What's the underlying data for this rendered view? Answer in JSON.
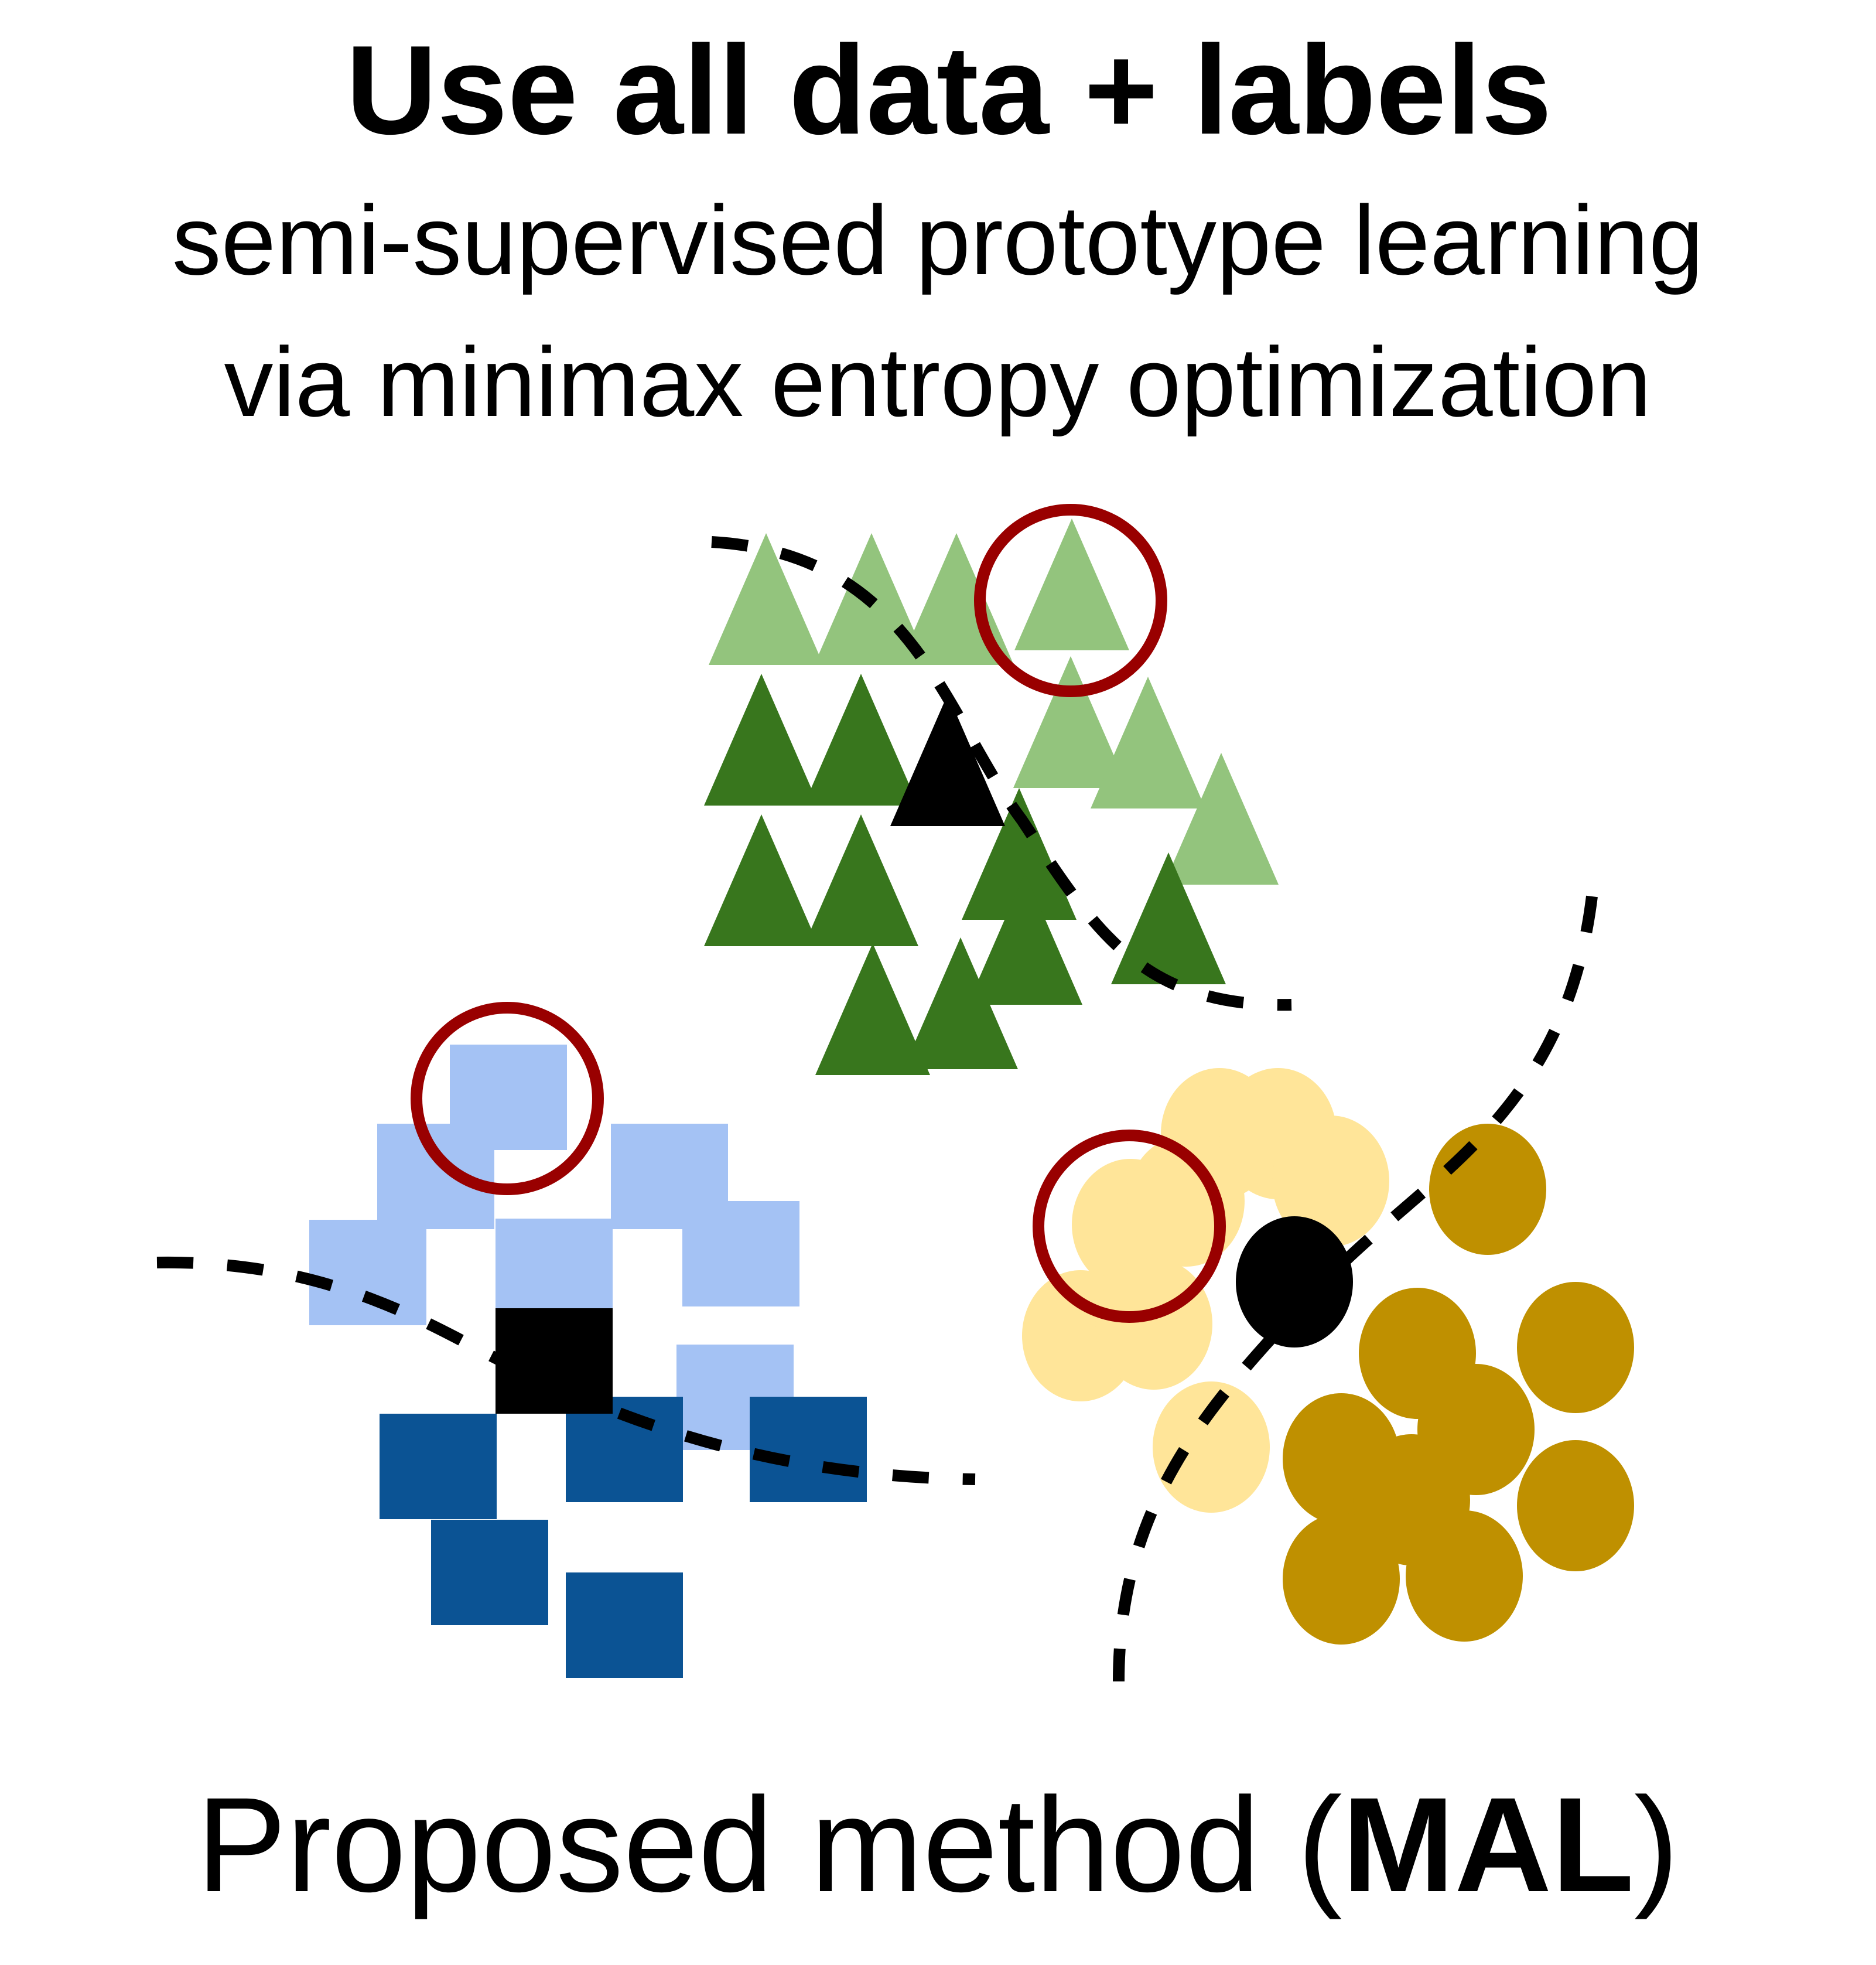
{
  "heading": {
    "title": "Use all data + labels",
    "subtitle_line1": "semi-supervised prototype learning",
    "subtitle_line2": "via minimax entropy optimization"
  },
  "caption": {
    "prefix": "Proposed method (",
    "bold": "MAL",
    "suffix": ")"
  },
  "colors": {
    "triangle_light": "#93c47d",
    "triangle_dark": "#38761d",
    "square_light": "#a4c2f4",
    "square_dark": "#0b5394",
    "circle_light": "#ffe599",
    "circle_dark": "#bf9000",
    "prototype": "#000000",
    "highlight_ring": "#990000",
    "boundary": "#000000"
  },
  "legend_icons": [
    "triangle-icon",
    "square-icon",
    "circle-icon"
  ]
}
